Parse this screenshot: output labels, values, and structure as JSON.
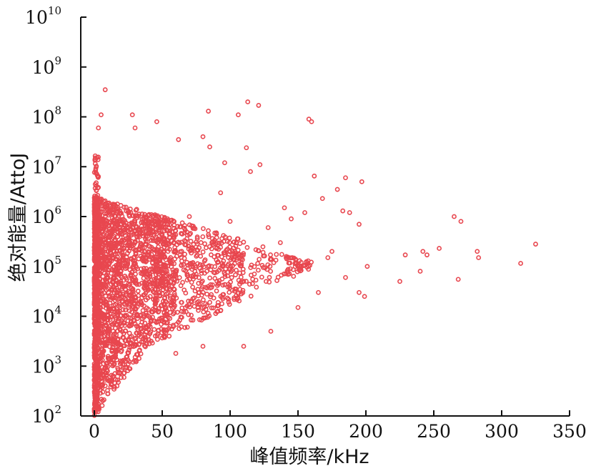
{
  "chart_data": {
    "type": "scatter",
    "title": "",
    "xlabel": "峰值频率/kHz",
    "ylabel": "绝对能量/AttoJ",
    "xlim": [
      -10,
      350
    ],
    "ylim_log10": [
      2,
      10
    ],
    "yscale": "log",
    "grid": false,
    "legend": "none",
    "marker_color": "#e8474f",
    "x_ticks": [
      0,
      50,
      100,
      150,
      200,
      250,
      300,
      350
    ],
    "y_ticks": [
      {
        "base": "10",
        "exp": "2"
      },
      {
        "base": "10",
        "exp": "3"
      },
      {
        "base": "10",
        "exp": "4"
      },
      {
        "base": "10",
        "exp": "5"
      },
      {
        "base": "10",
        "exp": "6"
      },
      {
        "base": "10",
        "exp": "7"
      },
      {
        "base": "10",
        "exp": "8"
      },
      {
        "base": "10",
        "exp": "9"
      },
      {
        "base": "10",
        "exp": "10"
      }
    ],
    "outliers": [
      [
        8,
        350000000.0
      ],
      [
        5,
        110000000.0
      ],
      [
        3,
        60000000.0
      ],
      [
        28,
        110000000.0
      ],
      [
        30,
        60000000.0
      ],
      [
        46,
        80000000.0
      ],
      [
        84,
        130000000.0
      ],
      [
        113,
        200000000.0
      ],
      [
        106,
        110000000.0
      ],
      [
        121,
        170000000.0
      ],
      [
        158,
        90000000.0
      ],
      [
        160,
        80000000.0
      ],
      [
        80,
        40000000.0
      ],
      [
        62,
        35000000.0
      ],
      [
        85,
        25000000.0
      ],
      [
        112,
        24000000.0
      ],
      [
        96,
        12000000.0
      ],
      [
        115,
        8000000.0
      ],
      [
        122,
        11000000.0
      ],
      [
        162,
        6500000.0
      ],
      [
        185,
        6000000.0
      ],
      [
        197,
        5000000.0
      ],
      [
        179,
        3500000.0
      ],
      [
        168,
        2300000.0
      ],
      [
        140,
        1500000.0
      ],
      [
        155,
        1200000.0
      ],
      [
        183,
        1300000.0
      ],
      [
        188,
        1200000.0
      ],
      [
        265,
        1000000.0
      ],
      [
        270,
        800000.0
      ],
      [
        195,
        700000.0
      ],
      [
        225,
        50000.0
      ],
      [
        229,
        170000.0
      ],
      [
        240,
        80000.0
      ],
      [
        242,
        200000.0
      ],
      [
        245,
        170000.0
      ],
      [
        254,
        230000.0
      ],
      [
        268,
        55000.0
      ],
      [
        282,
        200000.0
      ],
      [
        283,
        150000.0
      ],
      [
        314,
        115000.0
      ],
      [
        325,
        280000.0
      ],
      [
        201,
        100000.0
      ],
      [
        195,
        30000.0
      ],
      [
        199,
        25000.0
      ],
      [
        185,
        60000.0
      ],
      [
        130,
        5000.0
      ],
      [
        110,
        2500.0
      ],
      [
        80,
        2500.0
      ],
      [
        60,
        1800.0
      ],
      [
        175,
        200000.0
      ],
      [
        150,
        15000.0
      ],
      [
        165,
        30000.0
      ],
      [
        172,
        150000.0
      ],
      [
        137,
        300000.0
      ],
      [
        145,
        900000.0
      ],
      [
        128,
        600000.0
      ],
      [
        100,
        800000.0
      ],
      [
        70,
        1000000.0
      ],
      [
        93,
        3000000.0
      ]
    ]
  }
}
